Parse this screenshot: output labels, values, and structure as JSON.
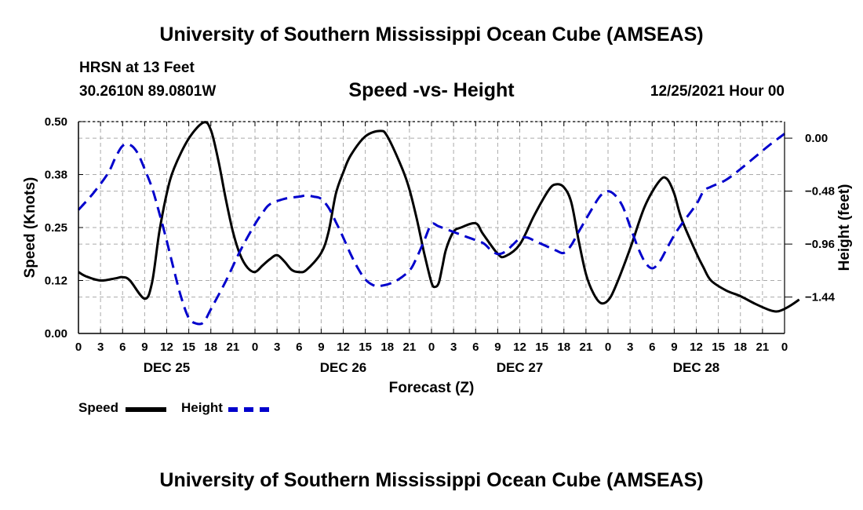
{
  "header": {
    "title": "University of Southern Mississippi Ocean Cube (AMSEAS)",
    "station": "HRSN at 13 Feet",
    "coords": "30.2610N  89.0801W",
    "subtitle": "Speed -vs- Height",
    "datestamp": "12/25/2021 Hour 00"
  },
  "footer": {
    "title": "University of Southern Mississippi Ocean Cube (AMSEAS)"
  },
  "legend": {
    "speed_label": "Speed",
    "height_label": "Height"
  },
  "colors": {
    "speed": "#000000",
    "height": "#0000cc",
    "grid": "#aaaaaa"
  },
  "chart_data": {
    "type": "line",
    "title": "Speed -vs- Height",
    "xlabel": "Forecast (Z)",
    "ylabel": "Speed (Knots)",
    "y2label": "Height (feet)",
    "xlim": [
      0,
      96
    ],
    "ylim": [
      0,
      0.5
    ],
    "y2lim": [
      -1.77,
      0.15
    ],
    "x_ticks": [
      0,
      3,
      6,
      9,
      12,
      15,
      18,
      21,
      24,
      27,
      30,
      33,
      36,
      39,
      42,
      45,
      48,
      51,
      54,
      57,
      60,
      63,
      66,
      69,
      72,
      75,
      78,
      81,
      84,
      87,
      90,
      93,
      96
    ],
    "x_tick_labels": [
      "0",
      "3",
      "6",
      "9",
      "12",
      "15",
      "18",
      "21",
      "0",
      "3",
      "6",
      "9",
      "12",
      "15",
      "18",
      "21",
      "0",
      "3",
      "6",
      "9",
      "12",
      "15",
      "18",
      "21",
      "0",
      "3",
      "6",
      "9",
      "12",
      "15",
      "18",
      "21",
      "0"
    ],
    "day_labels": [
      {
        "x": 12,
        "label": "DEC 25"
      },
      {
        "x": 36,
        "label": "DEC 26"
      },
      {
        "x": 60,
        "label": "DEC 27"
      },
      {
        "x": 84,
        "label": "DEC 28"
      }
    ],
    "y_ticks": [
      0,
      0.125,
      0.25,
      0.375,
      0.5
    ],
    "y_tick_labels": [
      "0.00",
      "0.12",
      "0.25",
      "0.38",
      "0.50"
    ],
    "y2_ticks": [
      0,
      -0.48,
      -0.96,
      -1.44
    ],
    "y2_tick_labels": [
      "0.00",
      "−0.48",
      "−0.96",
      "−1.44"
    ],
    "grid": true,
    "series": [
      {
        "name": "Speed",
        "axis": "left",
        "style": "solid",
        "points": [
          [
            0,
            0.145
          ],
          [
            1,
            0.135
          ],
          [
            3,
            0.125
          ],
          [
            5,
            0.13
          ],
          [
            6,
            0.133
          ],
          [
            7,
            0.125
          ],
          [
            9,
            0.082
          ],
          [
            10,
            0.12
          ],
          [
            11,
            0.24
          ],
          [
            12,
            0.33
          ],
          [
            13,
            0.39
          ],
          [
            15,
            0.46
          ],
          [
            17,
            0.498
          ],
          [
            18,
            0.48
          ],
          [
            19,
            0.41
          ],
          [
            20,
            0.32
          ],
          [
            21,
            0.24
          ],
          [
            22,
            0.185
          ],
          [
            23,
            0.155
          ],
          [
            24,
            0.145
          ],
          [
            25,
            0.16
          ],
          [
            26,
            0.175
          ],
          [
            27,
            0.185
          ],
          [
            28,
            0.17
          ],
          [
            29,
            0.15
          ],
          [
            30,
            0.145
          ],
          [
            31,
            0.15
          ],
          [
            33,
            0.19
          ],
          [
            34,
            0.24
          ],
          [
            35,
            0.33
          ],
          [
            36,
            0.38
          ],
          [
            37,
            0.42
          ],
          [
            39,
            0.465
          ],
          [
            41,
            0.478
          ],
          [
            42,
            0.465
          ],
          [
            44,
            0.39
          ],
          [
            45,
            0.34
          ],
          [
            46,
            0.27
          ],
          [
            47,
            0.19
          ],
          [
            48,
            0.12
          ],
          [
            48.5,
            0.11
          ],
          [
            49,
            0.12
          ],
          [
            49.5,
            0.16
          ],
          [
            50,
            0.2
          ],
          [
            51,
            0.24
          ],
          [
            52,
            0.25
          ],
          [
            54,
            0.26
          ],
          [
            55,
            0.235
          ],
          [
            57,
            0.188
          ],
          [
            58,
            0.182
          ],
          [
            60,
            0.21
          ],
          [
            62,
            0.28
          ],
          [
            64,
            0.34
          ],
          [
            65,
            0.352
          ],
          [
            66,
            0.345
          ],
          [
            67,
            0.31
          ],
          [
            68,
            0.22
          ],
          [
            69,
            0.14
          ],
          [
            70,
            0.095
          ],
          [
            71,
            0.072
          ],
          [
            72,
            0.078
          ],
          [
            73,
            0.11
          ],
          [
            75,
            0.2
          ],
          [
            77,
            0.3
          ],
          [
            79,
            0.36
          ],
          [
            80,
            0.365
          ],
          [
            81,
            0.33
          ],
          [
            82,
            0.27
          ],
          [
            84,
            0.19
          ],
          [
            85,
            0.155
          ],
          [
            86,
            0.125
          ],
          [
            88,
            0.102
          ],
          [
            90,
            0.088
          ],
          [
            92,
            0.07
          ],
          [
            94,
            0.055
          ],
          [
            95,
            0.052
          ],
          [
            96,
            0.058
          ],
          [
            97,
            0.068
          ],
          [
            98,
            0.08
          ]
        ]
      },
      {
        "name": "Height",
        "axis": "right",
        "style": "dashed",
        "points": [
          [
            0,
            -0.65
          ],
          [
            2,
            -0.5
          ],
          [
            4,
            -0.32
          ],
          [
            5,
            -0.18
          ],
          [
            6,
            -0.07
          ],
          [
            7,
            -0.06
          ],
          [
            8,
            -0.13
          ],
          [
            9,
            -0.28
          ],
          [
            10,
            -0.45
          ],
          [
            11,
            -0.68
          ],
          [
            12,
            -0.93
          ],
          [
            13,
            -1.2
          ],
          [
            14,
            -1.45
          ],
          [
            15,
            -1.63
          ],
          [
            16,
            -1.68
          ],
          [
            17,
            -1.67
          ],
          [
            18,
            -1.55
          ],
          [
            20,
            -1.3
          ],
          [
            22,
            -1.02
          ],
          [
            24,
            -0.78
          ],
          [
            25,
            -0.68
          ],
          [
            26,
            -0.6
          ],
          [
            28,
            -0.55
          ],
          [
            30,
            -0.53
          ],
          [
            31,
            -0.52
          ],
          [
            32,
            -0.53
          ],
          [
            33,
            -0.55
          ],
          [
            34,
            -0.63
          ],
          [
            35,
            -0.76
          ],
          [
            36,
            -0.9
          ],
          [
            37,
            -1.05
          ],
          [
            38,
            -1.18
          ],
          [
            39,
            -1.28
          ],
          [
            40,
            -1.33
          ],
          [
            41,
            -1.34
          ],
          [
            43,
            -1.3
          ],
          [
            45,
            -1.2
          ],
          [
            46,
            -1.08
          ],
          [
            47,
            -0.93
          ],
          [
            48,
            -0.78
          ],
          [
            49,
            -0.8
          ],
          [
            51,
            -0.85
          ],
          [
            53,
            -0.9
          ],
          [
            55,
            -0.95
          ],
          [
            56,
            -1.01
          ],
          [
            57,
            -1.05
          ],
          [
            58,
            -1.03
          ],
          [
            59,
            -0.97
          ],
          [
            60,
            -0.91
          ],
          [
            61,
            -0.9
          ],
          [
            62,
            -0.93
          ],
          [
            64,
            -0.99
          ],
          [
            65,
            -1.02
          ],
          [
            66,
            -1.04
          ],
          [
            67,
            -0.97
          ],
          [
            68,
            -0.85
          ],
          [
            70,
            -0.62
          ],
          [
            71,
            -0.52
          ],
          [
            72,
            -0.48
          ],
          [
            73,
            -0.52
          ],
          [
            74,
            -0.62
          ],
          [
            75,
            -0.8
          ],
          [
            76,
            -0.98
          ],
          [
            77,
            -1.12
          ],
          [
            78,
            -1.18
          ],
          [
            79,
            -1.12
          ],
          [
            80,
            -1.0
          ],
          [
            81,
            -0.88
          ],
          [
            82,
            -0.78
          ],
          [
            84,
            -0.6
          ],
          [
            85,
            -0.48
          ],
          [
            86,
            -0.44
          ],
          [
            88,
            -0.38
          ],
          [
            90,
            -0.28
          ],
          [
            92,
            -0.17
          ],
          [
            94,
            -0.06
          ],
          [
            96,
            0.04
          ]
        ]
      }
    ]
  }
}
